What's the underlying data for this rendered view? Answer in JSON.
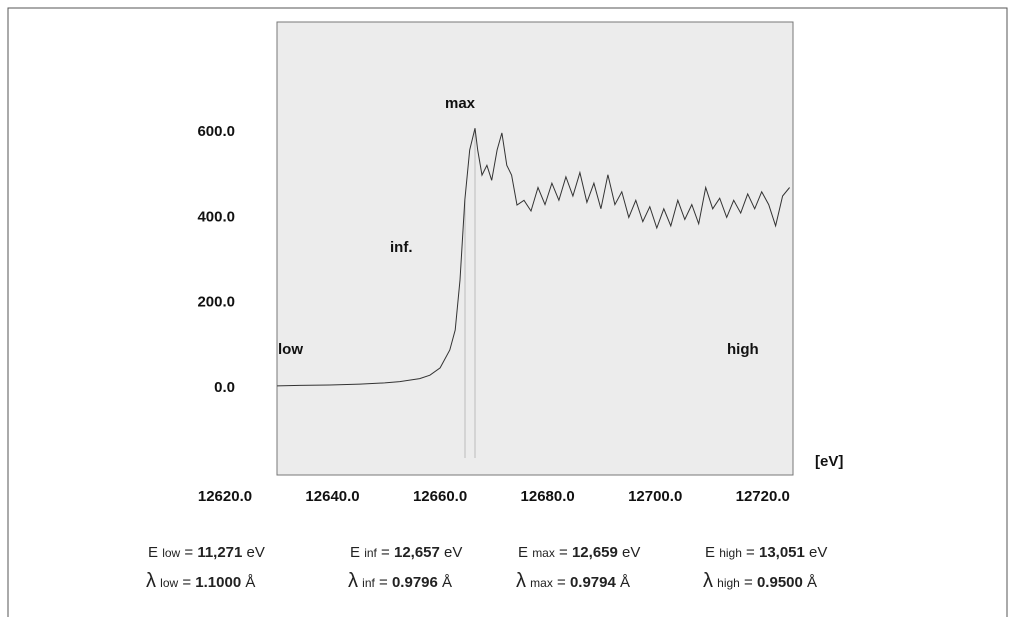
{
  "chart_data": {
    "type": "line",
    "x": [
      12629.7,
      12633.9,
      12639.5,
      12645.1,
      12649.7,
      12652.5,
      12656.2,
      12658.1,
      12660.0,
      12661.8,
      12662.8,
      12663.7,
      12664.6,
      12665.5,
      12666.5,
      12667.0,
      12667.8,
      12668.7,
      12669.6,
      12670.6,
      12671.5,
      12672.4,
      12673.3,
      12674.3,
      12675.6,
      12676.9,
      12678.2,
      12679.5,
      12680.8,
      12682.1,
      12683.4,
      12684.7,
      12686.0,
      12687.3,
      12688.6,
      12689.9,
      12691.2,
      12692.5,
      12693.8,
      12695.1,
      12696.4,
      12697.7,
      12699.0,
      12700.3,
      12701.6,
      12702.9,
      12704.2,
      12705.5,
      12706.8,
      12708.1,
      12709.4,
      12710.7,
      12712.0,
      12713.3,
      12714.6,
      12715.9,
      12717.2,
      12718.5,
      12719.8,
      12721.1,
      12722.4,
      12723.7,
      12725.0
    ],
    "values": [
      5,
      6,
      7,
      9,
      12,
      15,
      22,
      30,
      47,
      89,
      136,
      253,
      440,
      558,
      609,
      558,
      499,
      522,
      487,
      558,
      598,
      522,
      499,
      429,
      440,
      415,
      470,
      430,
      480,
      440,
      495,
      450,
      505,
      435,
      480,
      420,
      500,
      430,
      460,
      400,
      440,
      390,
      425,
      375,
      420,
      380,
      440,
      395,
      430,
      385,
      470,
      420,
      445,
      400,
      440,
      410,
      455,
      420,
      460,
      430,
      380,
      450,
      470
    ],
    "color": "#333333",
    "xlim": [
      12620,
      12726
    ],
    "ylim": [
      -204,
      858
    ],
    "xticks": [
      {
        "value": 12620,
        "label": "12620.0"
      },
      {
        "value": 12640,
        "label": "12640.0"
      },
      {
        "value": 12660,
        "label": "12660.0"
      },
      {
        "value": 12680,
        "label": "12680.0"
      },
      {
        "value": 12700,
        "label": "12700.0"
      },
      {
        "value": 12720,
        "label": "12720.0"
      }
    ],
    "yticks": [
      {
        "value": 0,
        "label": "0.0"
      },
      {
        "value": 200,
        "label": "200.0"
      },
      {
        "value": 400,
        "label": "400.0"
      },
      {
        "value": 600,
        "label": "600.0"
      }
    ],
    "x_label": "[eV]",
    "annotations": [
      "low",
      "inf.",
      "max",
      "high"
    ]
  },
  "info": {
    "e": "E",
    "lambda": "λ",
    "eq": "=",
    "ev": "eV",
    "angstrom": "Å",
    "items": [
      {
        "sub": "low",
        "energy": "11,271",
        "wavelength": "1.1000"
      },
      {
        "sub": "inf",
        "energy": "12,657",
        "wavelength": "0.9796"
      },
      {
        "sub": "max",
        "energy": "12,659",
        "wavelength": "0.9794"
      },
      {
        "sub": "high",
        "energy": "13,051",
        "wavelength": "0.9500"
      }
    ]
  }
}
